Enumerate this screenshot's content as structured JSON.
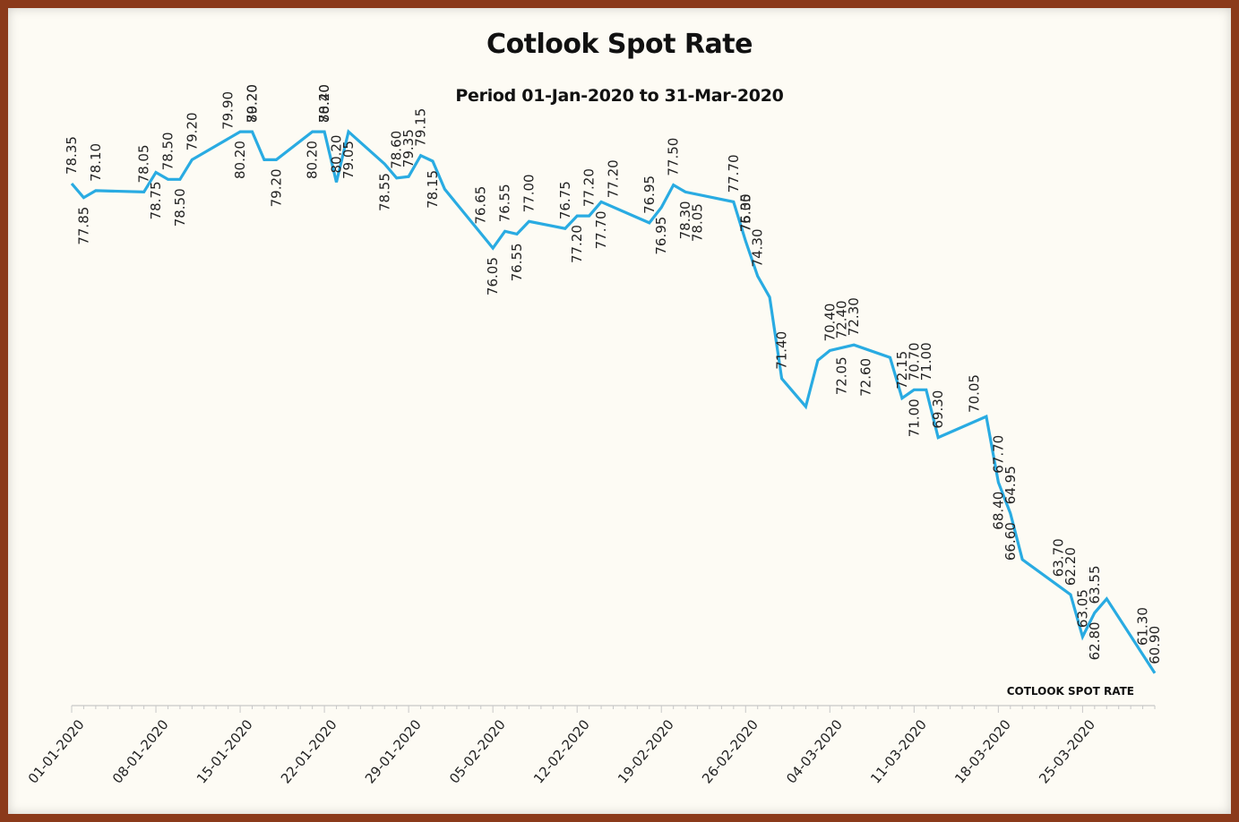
{
  "chart_data": {
    "type": "line",
    "title": "Cotlook Spot Rate",
    "subtitle": "Period 01-Jan-2020 to 31-Mar-2020",
    "xlabel": "",
    "ylabel": "",
    "legend": "bottom-right",
    "series_color": "#29abe2",
    "ylim": [
      60,
      81
    ],
    "x_ticks": [
      "01-01-2020",
      "08-01-2020",
      "15-01-2020",
      "22-01-2020",
      "29-01-2020",
      "05-02-2020",
      "12-02-2020",
      "19-02-2020",
      "26-02-2020",
      "04-03-2020",
      "11-03-2020",
      "18-03-2020",
      "25-03-2020"
    ],
    "series": [
      {
        "name": "COTLOOK SPOT RATE",
        "x": [
          "2020-01-01",
          "2020-01-02",
          "2020-01-03",
          "2020-01-07",
          "2020-01-08",
          "2020-01-09",
          "2020-01-10",
          "2020-01-11",
          "2020-01-15",
          "2020-01-16",
          "2020-01-17",
          "2020-01-18",
          "2020-01-21",
          "2020-01-22",
          "2020-01-23",
          "2020-01-24",
          "2020-01-27",
          "2020-01-28",
          "2020-01-29",
          "2020-01-30",
          "2020-01-31",
          "2020-02-01",
          "2020-02-05",
          "2020-02-06",
          "2020-02-07",
          "2020-02-08",
          "2020-02-11",
          "2020-02-12",
          "2020-02-13",
          "2020-02-14",
          "2020-02-18",
          "2020-02-19",
          "2020-02-20",
          "2020-02-21",
          "2020-02-25",
          "2020-02-26",
          "2020-02-27",
          "2020-02-28",
          "2020-02-29",
          "2020-03-02",
          "2020-03-03",
          "2020-03-04",
          "2020-03-06",
          "2020-03-09",
          "2020-03-10",
          "2020-03-11",
          "2020-03-12",
          "2020-03-13",
          "2020-03-17",
          "2020-03-18",
          "2020-03-19",
          "2020-03-20",
          "2020-03-24",
          "2020-03-25",
          "2020-03-26",
          "2020-03-27",
          "2020-03-31"
        ],
        "values": [
          78.35,
          77.85,
          78.1,
          78.05,
          78.75,
          78.5,
          78.5,
          79.2,
          80.2,
          80.2,
          79.2,
          79.2,
          80.2,
          80.2,
          78.4,
          80.2,
          79.05,
          78.55,
          78.6,
          79.35,
          79.15,
          78.15,
          76.05,
          76.65,
          76.55,
          77.0,
          76.75,
          77.2,
          77.2,
          77.7,
          76.95,
          77.5,
          78.3,
          78.05,
          77.7,
          76.3,
          75.05,
          74.3,
          71.4,
          70.4,
          72.05,
          72.4,
          72.6,
          72.15,
          70.7,
          71.0,
          71.0,
          69.3,
          70.05,
          67.7,
          66.6,
          64.95,
          63.7,
          62.2,
          63.05,
          63.55,
          60.9
        ]
      }
    ],
    "data_labels": [
      {
        "text": "78.35",
        "x": "2020-01-01",
        "pos": "above"
      },
      {
        "text": "77.85",
        "x": "2020-01-02",
        "pos": "below"
      },
      {
        "text": "78.10",
        "x": "2020-01-03",
        "pos": "above"
      },
      {
        "text": "78.05",
        "x": "2020-01-07",
        "pos": "above"
      },
      {
        "text": "78.75",
        "x": "2020-01-08",
        "pos": "below"
      },
      {
        "text": "78.50",
        "x": "2020-01-09",
        "pos": "above"
      },
      {
        "text": "78.50",
        "x": "2020-01-10",
        "pos": "below"
      },
      {
        "text": "79.20",
        "x": "2020-01-11",
        "pos": "above"
      },
      {
        "text": "79.90",
        "x": "2020-01-14",
        "pos": "above"
      },
      {
        "text": "80.20",
        "x": "2020-01-15",
        "pos": "below"
      },
      {
        "text": "80.20",
        "x": "2020-01-16",
        "pos": "above"
      },
      {
        "text": "79.20",
        "x": "2020-01-16",
        "pos": "above"
      },
      {
        "text": "79.20",
        "x": "2020-01-18",
        "pos": "below"
      },
      {
        "text": "80.20",
        "x": "2020-01-21",
        "pos": "below"
      },
      {
        "text": "80.20",
        "x": "2020-01-22",
        "pos": "above"
      },
      {
        "text": "78.40",
        "x": "2020-01-22",
        "pos": "above"
      },
      {
        "text": "80.20",
        "x": "2020-01-23",
        "pos": "above"
      },
      {
        "text": "79.05",
        "x": "2020-01-24",
        "pos": "below"
      },
      {
        "text": "78.55",
        "x": "2020-01-27",
        "pos": "below"
      },
      {
        "text": "78.60",
        "x": "2020-01-28",
        "pos": "above"
      },
      {
        "text": "79.35",
        "x": "2020-01-29",
        "pos": "above"
      },
      {
        "text": "79.15",
        "x": "2020-01-30",
        "pos": "above"
      },
      {
        "text": "78.15",
        "x": "2020-01-31",
        "pos": "below"
      },
      {
        "text": "76.65",
        "x": "2020-02-04",
        "pos": "above"
      },
      {
        "text": "76.05",
        "x": "2020-02-05",
        "pos": "below"
      },
      {
        "text": "76.55",
        "x": "2020-02-06",
        "pos": "above"
      },
      {
        "text": "76.55",
        "x": "2020-02-07",
        "pos": "below"
      },
      {
        "text": "77.00",
        "x": "2020-02-08",
        "pos": "above"
      },
      {
        "text": "76.75",
        "x": "2020-02-11",
        "pos": "above"
      },
      {
        "text": "77.20",
        "x": "2020-02-12",
        "pos": "below"
      },
      {
        "text": "77.20",
        "x": "2020-02-13",
        "pos": "above"
      },
      {
        "text": "77.70",
        "x": "2020-02-14",
        "pos": "below"
      },
      {
        "text": "77.20",
        "x": "2020-02-15",
        "pos": "above"
      },
      {
        "text": "76.95",
        "x": "2020-02-18",
        "pos": "above"
      },
      {
        "text": "76.95",
        "x": "2020-02-19",
        "pos": "below"
      },
      {
        "text": "77.50",
        "x": "2020-02-20",
        "pos": "above"
      },
      {
        "text": "78.30",
        "x": "2020-02-21",
        "pos": "below"
      },
      {
        "text": "78.05",
        "x": "2020-02-22",
        "pos": "below"
      },
      {
        "text": "77.70",
        "x": "2020-02-25",
        "pos": "above"
      },
      {
        "text": "76.30",
        "x": "2020-02-26",
        "pos": "above"
      },
      {
        "text": "75.05",
        "x": "2020-02-26",
        "pos": "above"
      },
      {
        "text": "74.30",
        "x": "2020-02-27",
        "pos": "above"
      },
      {
        "text": "71.40",
        "x": "2020-02-29",
        "pos": "above"
      },
      {
        "text": "70.40",
        "x": "2020-03-04",
        "pos": "above"
      },
      {
        "text": "72.40",
        "x": "2020-03-05",
        "pos": "above"
      },
      {
        "text": "72.05",
        "x": "2020-03-05",
        "pos": "below"
      },
      {
        "text": "72.30",
        "x": "2020-03-06",
        "pos": "above"
      },
      {
        "text": "72.60",
        "x": "2020-03-07",
        "pos": "below"
      },
      {
        "text": "72.15",
        "x": "2020-03-10",
        "pos": "above"
      },
      {
        "text": "70.70",
        "x": "2020-03-11",
        "pos": "above"
      },
      {
        "text": "71.00",
        "x": "2020-03-11",
        "pos": "below"
      },
      {
        "text": "71.00",
        "x": "2020-03-12",
        "pos": "above"
      },
      {
        "text": "69.30",
        "x": "2020-03-13",
        "pos": "above"
      },
      {
        "text": "70.05",
        "x": "2020-03-16",
        "pos": "above"
      },
      {
        "text": "67.70",
        "x": "2020-03-18",
        "pos": "above"
      },
      {
        "text": "68.40",
        "x": "2020-03-18",
        "pos": "below"
      },
      {
        "text": "64.95",
        "x": "2020-03-19",
        "pos": "above"
      },
      {
        "text": "66.60",
        "x": "2020-03-19",
        "pos": "below"
      },
      {
        "text": "63.70",
        "x": "2020-03-23",
        "pos": "above"
      },
      {
        "text": "62.20",
        "x": "2020-03-24",
        "pos": "above"
      },
      {
        "text": "63.05",
        "x": "2020-03-25",
        "pos": "above"
      },
      {
        "text": "63.55",
        "x": "2020-03-26",
        "pos": "above"
      },
      {
        "text": "62.80",
        "x": "2020-03-26",
        "pos": "below"
      },
      {
        "text": "61.30",
        "x": "2020-03-30",
        "pos": "above"
      },
      {
        "text": "60.90",
        "x": "2020-03-31",
        "pos": "above"
      }
    ]
  }
}
